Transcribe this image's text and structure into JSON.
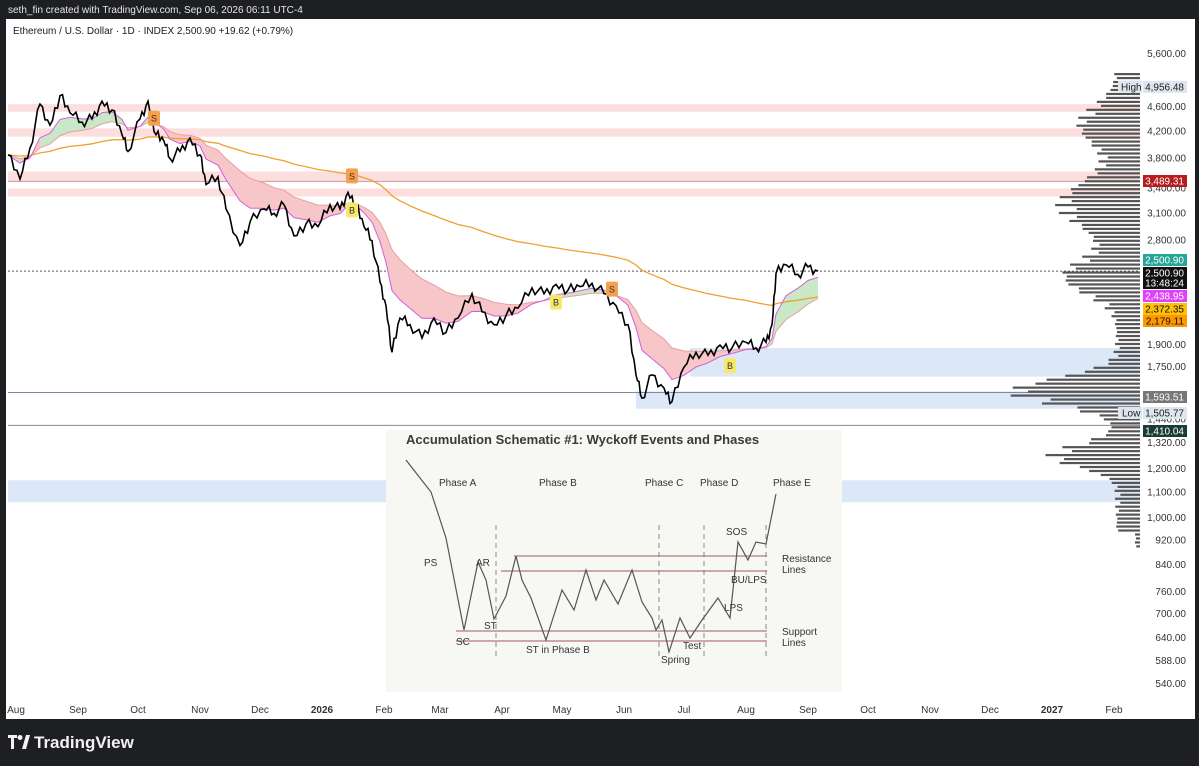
{
  "header": {
    "creator": "seth_fin created with TradingView.com, Sep 06, 2026 06:11 UTC-4",
    "symbol_line": "Ethereum / U.S. Dollar · 1D · INDEX  2,500.90  +19.62 (+0.79%)"
  },
  "brand": {
    "name": "TradingView"
  },
  "colors": {
    "price": "#000000",
    "sma": "#f0a030",
    "ema_fast": "#d060d8",
    "band_bear": "#f6c6c8",
    "band_bull": "#c8e8c8",
    "supply_zone": "#fcdede",
    "demand_zone": "#dce8f8",
    "volume_profile": "#555555"
  },
  "chart_data": {
    "type": "line",
    "title": "Ethereum / U.S. Dollar · 1D · INDEX",
    "y_scale": "log",
    "ylim": [
      520,
      5900
    ],
    "y_ticks": [
      5600,
      4600,
      4200,
      3800,
      3400,
      3100,
      2800,
      2500,
      1900,
      1750,
      1440,
      1320,
      1200,
      1100,
      1000,
      920,
      840,
      760,
      700,
      640,
      588,
      540
    ],
    "x_ticks": [
      "Aug",
      "Sep",
      "Oct",
      "Nov",
      "Dec",
      "2026",
      "Feb",
      "Mar",
      "Apr",
      "May",
      "Jun",
      "Jul",
      "Aug",
      "Sep",
      "Oct",
      "Nov",
      "Dec",
      "2027",
      "Feb"
    ],
    "price_series": {
      "name": "ETHUSD",
      "points": [
        [
          "2025-07-28",
          3850
        ],
        [
          "2025-08-03",
          3520
        ],
        [
          "2025-08-08",
          3950
        ],
        [
          "2025-08-13",
          4650
        ],
        [
          "2025-08-18",
          4300
        ],
        [
          "2025-08-23",
          4800
        ],
        [
          "2025-08-28",
          4500
        ],
        [
          "2025-09-03",
          4350
        ],
        [
          "2025-09-08",
          4400
        ],
        [
          "2025-09-13",
          4700
        ],
        [
          "2025-09-18",
          4550
        ],
        [
          "2025-09-23",
          4150
        ],
        [
          "2025-09-26",
          3900
        ],
        [
          "2025-10-02",
          4400
        ],
        [
          "2025-10-06",
          4700
        ],
        [
          "2025-10-10",
          4150
        ],
        [
          "2025-10-14",
          4050
        ],
        [
          "2025-10-17",
          3800
        ],
        [
          "2025-10-22",
          3900
        ],
        [
          "2025-10-27",
          4100
        ],
        [
          "2025-11-01",
          3850
        ],
        [
          "2025-11-04",
          3450
        ],
        [
          "2025-11-10",
          3550
        ],
        [
          "2025-11-14",
          3150
        ],
        [
          "2025-11-21",
          2750
        ],
        [
          "2025-11-26",
          3000
        ],
        [
          "2025-12-03",
          3150
        ],
        [
          "2025-12-08",
          3100
        ],
        [
          "2025-12-13",
          3200
        ],
        [
          "2025-12-18",
          2850
        ],
        [
          "2025-12-24",
          2980
        ],
        [
          "2025-12-30",
          2950
        ],
        [
          "2026-01-05",
          3200
        ],
        [
          "2026-01-10",
          3150
        ],
        [
          "2026-01-14",
          3350
        ],
        [
          "2026-01-18",
          3200
        ],
        [
          "2026-01-22",
          2950
        ],
        [
          "2026-01-26",
          2800
        ],
        [
          "2026-01-30",
          2400
        ],
        [
          "2026-02-02",
          2200
        ],
        [
          "2026-02-05",
          1850
        ],
        [
          "2026-02-09",
          2100
        ],
        [
          "2026-02-14",
          2050
        ],
        [
          "2026-02-20",
          1950
        ],
        [
          "2026-02-26",
          2100
        ],
        [
          "2026-03-04",
          1990
        ],
        [
          "2026-03-10",
          2100
        ],
        [
          "2026-03-17",
          2300
        ],
        [
          "2026-03-22",
          2150
        ],
        [
          "2026-03-28",
          2050
        ],
        [
          "2026-04-03",
          2120
        ],
        [
          "2026-04-09",
          2180
        ],
        [
          "2026-04-16",
          2350
        ],
        [
          "2026-04-22",
          2300
        ],
        [
          "2026-04-28",
          2380
        ],
        [
          "2026-05-04",
          2330
        ],
        [
          "2026-05-10",
          2360
        ],
        [
          "2026-05-16",
          2390
        ],
        [
          "2026-05-22",
          2300
        ],
        [
          "2026-05-28",
          2200
        ],
        [
          "2026-06-03",
          2050
        ],
        [
          "2026-06-07",
          1700
        ],
        [
          "2026-06-10",
          1560
        ],
        [
          "2026-06-15",
          1700
        ],
        [
          "2026-06-21",
          1620
        ],
        [
          "2026-06-25",
          1540
        ],
        [
          "2026-07-01",
          1750
        ],
        [
          "2026-07-07",
          1850
        ],
        [
          "2026-07-13",
          1830
        ],
        [
          "2026-07-19",
          1900
        ],
        [
          "2026-07-25",
          1880
        ],
        [
          "2026-08-01",
          1920
        ],
        [
          "2026-08-06",
          1880
        ],
        [
          "2026-08-11",
          1920
        ],
        [
          "2026-08-14",
          2050
        ],
        [
          "2026-08-16",
          2480
        ],
        [
          "2026-08-21",
          2560
        ],
        [
          "2026-08-27",
          2470
        ],
        [
          "2026-09-01",
          2540
        ],
        [
          "2026-09-06",
          2500.9
        ]
      ]
    },
    "annotations": {
      "high_label": "High",
      "high_value": "4,956.48",
      "low_label": "Low",
      "low_value": "1,505.77",
      "price_tags": [
        {
          "value": "3,489.31",
          "color": "#b71c1c"
        },
        {
          "value": "2,500.90",
          "color": "#26a69a"
        },
        {
          "value": "2,500.90",
          "color": "#111111"
        },
        {
          "value": "13:48:24",
          "color": "#111111"
        },
        {
          "value": "2,438.95",
          "color": "#e040fb"
        },
        {
          "value": "2,372.35",
          "color": "#ffc107"
        },
        {
          "value": "2,179.11",
          "color": "#ff9800"
        },
        {
          "value": "1,593.51",
          "color": "#777777"
        },
        {
          "value": "1,410.04",
          "color": "#1b3b35"
        }
      ],
      "signals": [
        {
          "label": "S",
          "date": "2025-10-09",
          "type": "sell"
        },
        {
          "label": "S",
          "date": "2026-01-16",
          "type": "sell"
        },
        {
          "label": "B",
          "date": "2026-01-16",
          "type": "buy"
        },
        {
          "label": "B",
          "date": "2026-04-28",
          "type": "buy"
        },
        {
          "label": "S",
          "date": "2026-05-26",
          "type": "sell"
        },
        {
          "label": "B",
          "date": "2026-07-24",
          "type": "buy"
        }
      ]
    }
  },
  "schematic": {
    "title": "Accumulation Schematic #1: Wyckoff Events and Phases",
    "phases": [
      "Phase A",
      "Phase B",
      "Phase C",
      "Phase D",
      "Phase E"
    ],
    "events": [
      "PS",
      "AR",
      "ST",
      "SC",
      "ST in Phase B",
      "Spring",
      "Test",
      "LPS",
      "BU/LPS",
      "SOS"
    ],
    "resistance_label_1": "Resistance",
    "resistance_label_2": "Lines",
    "support_label_1": "Support",
    "support_label_2": "Lines"
  }
}
